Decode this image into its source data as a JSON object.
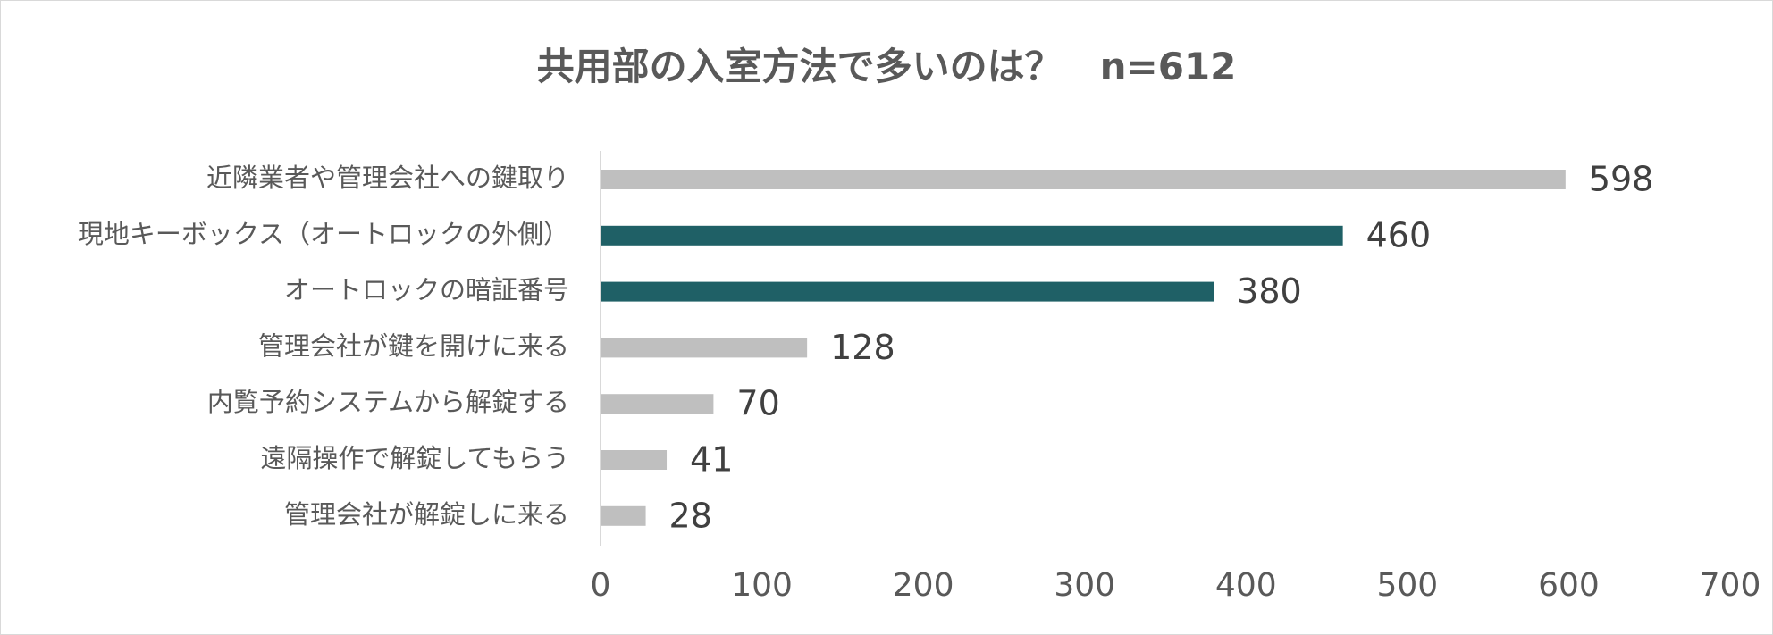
{
  "chart_data": {
    "type": "bar",
    "orientation": "horizontal",
    "title": "共用部の入室方法で多いのは？　n=612",
    "categories": [
      "近隣業者や管理会社への鍵取り",
      "現地キーボックス（オートロックの外側）",
      "オートロックの暗証番号",
      "管理会社が鍵を開けに来る",
      "内覧予約システムから解錠する",
      "遠隔操作で解錠してもらう",
      "管理会社が解錠しに来る"
    ],
    "values": [
      598,
      460,
      380,
      128,
      70,
      41,
      28
    ],
    "highlighted": [
      false,
      true,
      true,
      false,
      false,
      false,
      false
    ],
    "xlim": [
      0,
      700
    ],
    "xticks": [
      0,
      100,
      200,
      300,
      400,
      500,
      600,
      700
    ],
    "grid": false,
    "legend": "none",
    "colors": {
      "bar_default": "#bfbfbf",
      "bar_highlight": "#1f6066",
      "axis_line": "#d9d9d9",
      "text": "#595959",
      "data_label": "#404040"
    }
  }
}
